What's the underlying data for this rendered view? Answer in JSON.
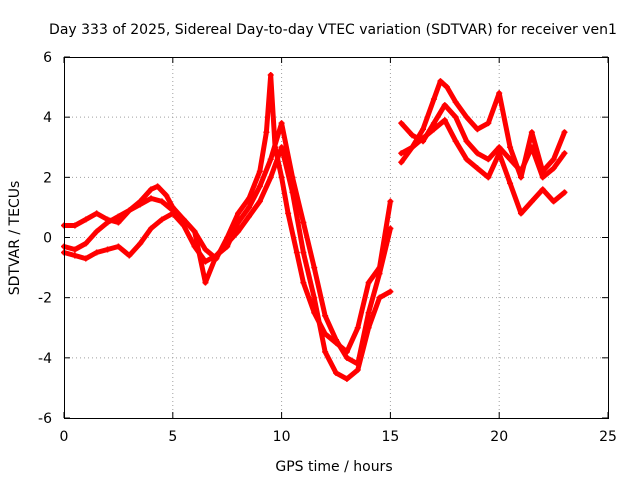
{
  "chart_data": {
    "type": "scatter",
    "title": "Day 333 of 2025, Sidereal Day-to-day VTEC variation (SDTVAR) for receiver ven1",
    "xlabel": "GPS time / hours",
    "ylabel": "SDTVAR / TECUs",
    "xlim": [
      0,
      25
    ],
    "ylim": [
      -6,
      6
    ],
    "xticks": [
      0,
      5,
      10,
      15,
      20,
      25
    ],
    "yticks": [
      -6,
      -4,
      -2,
      0,
      2,
      4,
      6
    ],
    "xtick_labels": [
      "0",
      "5",
      "10",
      "15",
      "20",
      "25"
    ],
    "ytick_labels": [
      "-6",
      "-4",
      "-2",
      "0",
      "2",
      "4",
      "6"
    ],
    "grid": true,
    "marker": "plus",
    "colors": {
      "series": "#ff0000",
      "grid": "#a0a0a0",
      "frame": "#000000"
    },
    "series": [
      {
        "x": [
          0,
          0.5,
          1,
          1.5,
          2,
          2.5,
          3,
          3.5,
          4,
          4.3,
          4.7,
          5,
          5.5,
          6,
          6.5,
          7,
          7.5,
          8,
          8.5,
          9,
          9.3,
          9.5,
          9.7,
          10,
          10.3,
          10.7,
          11,
          11.5,
          12,
          12.5,
          13,
          13.5,
          14,
          14.5,
          15
        ],
        "y": [
          0.4,
          0.4,
          0.6,
          0.8,
          0.6,
          0.5,
          0.9,
          1.2,
          1.6,
          1.7,
          1.4,
          1.0,
          0.6,
          0.2,
          -0.4,
          -0.7,
          0.0,
          0.8,
          1.3,
          2.2,
          3.5,
          5.4,
          3.0,
          2.0,
          0.8,
          -0.5,
          -1.5,
          -2.5,
          -3.2,
          -3.5,
          -3.8,
          -3.0,
          -1.5,
          -1.0,
          1.2
        ]
      },
      {
        "x": [
          0,
          0.5,
          1,
          1.5,
          2,
          2.5,
          3,
          3.5,
          4,
          4.5,
          5,
          5.5,
          6,
          6.5,
          7,
          7.5,
          8,
          8.5,
          9,
          9.5,
          10,
          10.5,
          11,
          11.5,
          12,
          12.5,
          13,
          13.5,
          14,
          14.5,
          15
        ],
        "y": [
          -0.3,
          -0.4,
          -0.2,
          0.2,
          0.5,
          0.7,
          0.9,
          1.1,
          1.3,
          1.2,
          0.9,
          0.6,
          0.2,
          -1.5,
          -0.6,
          -0.3,
          0.5,
          1.0,
          1.7,
          2.6,
          3.8,
          2.0,
          0.5,
          -1.0,
          -2.6,
          -3.4,
          -4.0,
          -4.2,
          -2.5,
          -1.2,
          0.3
        ]
      },
      {
        "x": [
          0,
          0.5,
          1,
          1.5,
          2,
          2.5,
          3,
          3.5,
          4,
          4.5,
          5,
          5.5,
          6,
          6.5,
          7,
          7.5,
          8,
          8.5,
          9,
          9.5,
          10,
          10.5,
          11,
          11.5,
          12,
          12.5,
          13,
          13.5,
          14,
          14.5,
          15
        ],
        "y": [
          -0.5,
          -0.6,
          -0.7,
          -0.5,
          -0.4,
          -0.3,
          -0.6,
          -0.2,
          0.3,
          0.6,
          0.8,
          0.4,
          -0.3,
          -0.8,
          -0.6,
          -0.2,
          0.2,
          0.7,
          1.2,
          2.0,
          3.0,
          1.5,
          -0.5,
          -2.0,
          -3.8,
          -4.5,
          -4.7,
          -4.4,
          -3.0,
          -2.0,
          -1.8
        ]
      },
      {
        "x": [
          15.5,
          16,
          16.5,
          17,
          17.3,
          17.6,
          18,
          18.5,
          19,
          19.5,
          20,
          20.5,
          21,
          21.5,
          22,
          22.5,
          23
        ],
        "y": [
          2.8,
          3.0,
          3.6,
          4.6,
          5.2,
          5.0,
          4.5,
          4.0,
          3.6,
          3.8,
          4.8,
          3.0,
          2.0,
          3.5,
          2.2,
          2.6,
          3.5
        ]
      },
      {
        "x": [
          15.5,
          16,
          16.5,
          17,
          17.5,
          18,
          18.5,
          19,
          19.5,
          20,
          20.5,
          21,
          21.5,
          22,
          22.5,
          23
        ],
        "y": [
          3.8,
          3.4,
          3.2,
          3.8,
          4.4,
          4.0,
          3.2,
          2.8,
          2.6,
          3.0,
          2.6,
          2.2,
          3.0,
          2.0,
          2.3,
          2.8
        ]
      },
      {
        "x": [
          15.5,
          16,
          16.5,
          17,
          17.5,
          18,
          18.5,
          19,
          19.5,
          20,
          20.5,
          21,
          21.5,
          22,
          22.5,
          23
        ],
        "y": [
          2.5,
          3.0,
          3.3,
          3.6,
          3.9,
          3.2,
          2.6,
          2.3,
          2.0,
          2.8,
          1.8,
          0.8,
          1.2,
          1.6,
          1.2,
          1.5
        ]
      }
    ]
  }
}
